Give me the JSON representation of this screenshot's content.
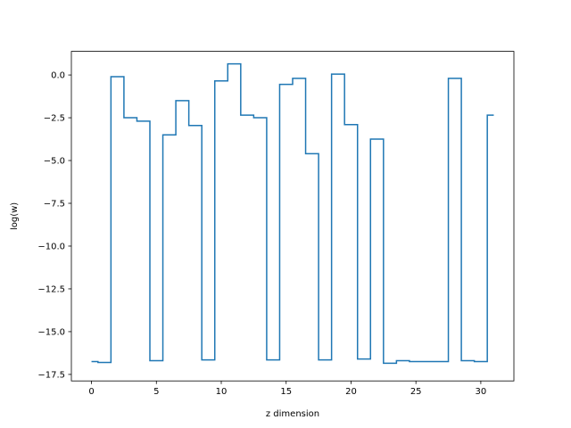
{
  "chart_data": {
    "type": "line",
    "drawstyle": "steps-mid",
    "title": "",
    "xlabel": "z dimension",
    "ylabel": "log(w)",
    "xlim": [
      -1.55,
      32.55
    ],
    "ylim": [
      -17.88,
      1.38
    ],
    "grid": false,
    "line_color": "#1f77b4",
    "x_ticks": [
      0,
      5,
      10,
      15,
      20,
      25,
      30
    ],
    "x_tick_labels": [
      "0",
      "5",
      "10",
      "15",
      "20",
      "25",
      "30"
    ],
    "y_ticks": [
      0.0,
      -2.5,
      -5.0,
      -7.5,
      -10.0,
      -12.5,
      -15.0,
      -17.5
    ],
    "y_tick_labels": [
      "0.0",
      "−2.5",
      "−5.0",
      "−7.5",
      "−10.0",
      "−12.5",
      "−15.0",
      "−17.5"
    ],
    "series": [
      {
        "x": [
          0,
          1,
          2,
          3,
          4,
          5,
          6,
          7,
          8,
          9,
          10,
          11,
          12,
          13,
          14,
          15,
          16,
          17,
          18,
          19,
          20,
          21,
          22,
          23,
          24,
          25,
          26,
          27,
          28,
          29,
          30,
          31
        ],
        "y": [
          -16.75,
          -16.8,
          -0.1,
          -2.5,
          -2.7,
          -16.7,
          -3.5,
          -1.5,
          -2.95,
          -16.65,
          -0.35,
          0.65,
          -2.35,
          -2.5,
          -16.65,
          -0.55,
          -0.2,
          -4.6,
          -16.65,
          0.05,
          -2.9,
          -16.6,
          -3.75,
          -16.85,
          -16.7,
          -16.75,
          -16.75,
          -16.75,
          -0.2,
          -16.7,
          -16.75,
          -2.35
        ]
      }
    ]
  }
}
